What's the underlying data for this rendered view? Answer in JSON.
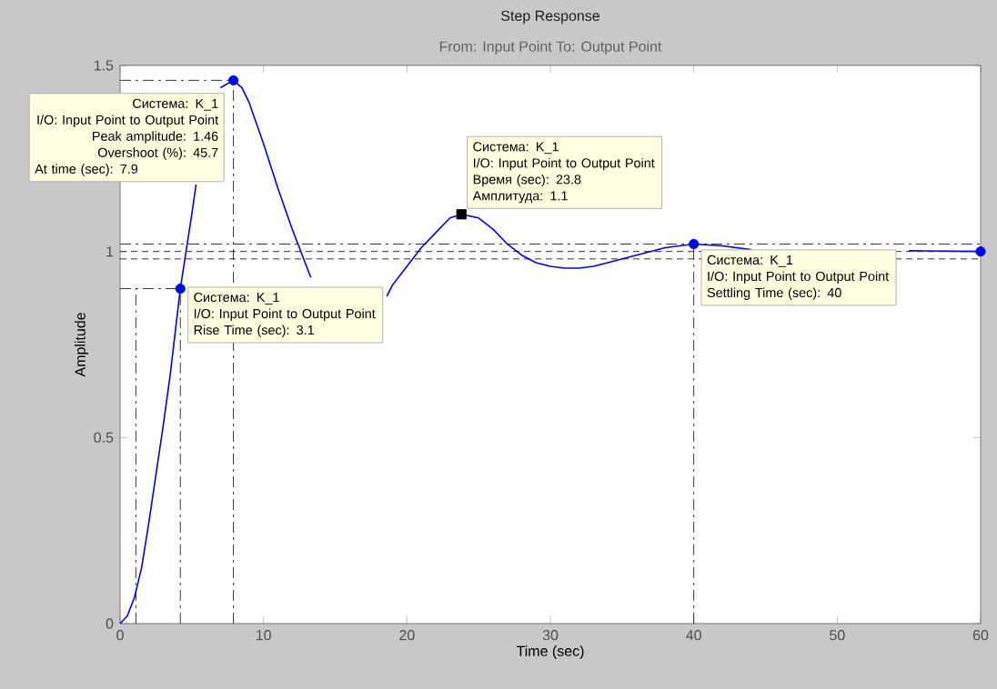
{
  "chart_data": {
    "type": "line",
    "title": "Step Response",
    "subtitle": "From: Input Point  To: Output Point",
    "xlabel": "Time (sec)",
    "ylabel": "Amplitude",
    "xlim": [
      0,
      60
    ],
    "ylim": [
      0,
      1.5
    ],
    "xticks": [
      0,
      10,
      20,
      30,
      40,
      50,
      60
    ],
    "yticks": [
      0,
      {
        "value": 0.5,
        "label": "0.5"
      },
      1,
      {
        "value": 1.5,
        "label": "1.5"
      }
    ],
    "grid": false,
    "series": [
      {
        "color": "#000000",
        "marker": "none",
        "line_style": "dashed",
        "x": [
          1.1,
          1.1
        ],
        "values": [
          0,
          0.9
        ]
      },
      {
        "color": "#000000",
        "marker": "none",
        "line_style": "dashed",
        "x": [
          4.2,
          4.2
        ],
        "values": [
          0,
          0.9
        ]
      },
      {
        "color": "#000000",
        "marker": "none",
        "line_style": "dashed",
        "x": [
          7.9,
          7.9
        ],
        "values": [
          0,
          1.46
        ]
      },
      {
        "color": "#000000",
        "marker": "none",
        "line_style": "dashed",
        "x": [
          40,
          40
        ],
        "values": [
          0,
          1.02
        ]
      },
      {
        "color": "#000000",
        "marker": "none",
        "line_style": "dashed",
        "x": [
          0,
          4.2
        ],
        "values": [
          0.9,
          0.9
        ]
      },
      {
        "color": "#000000",
        "marker": "none",
        "line_style": "dashed",
        "x": [
          0,
          7.9
        ],
        "values": [
          1.46,
          1.46
        ]
      },
      {
        "color": "#0000ff",
        "marker": "none",
        "x": [
          0,
          0.5,
          1,
          1.5,
          2,
          2.5,
          3,
          3.5,
          4.2,
          5,
          5.3,
          5.5,
          6,
          6.5,
          7,
          7.9,
          8.5,
          9,
          10,
          11,
          12,
          13,
          13.3,
          14,
          15,
          16,
          17,
          18,
          18.6,
          19,
          20,
          21,
          22,
          23,
          23.8,
          25,
          26,
          27,
          28,
          29,
          30,
          31,
          32,
          33,
          34,
          36,
          38,
          40,
          42,
          44,
          46,
          48,
          50,
          52,
          55,
          60
        ],
        "values": [
          0,
          0.02,
          0.07,
          0.15,
          0.27,
          0.4,
          0.53,
          0.67,
          0.9,
          1.1,
          1.18,
          null,
          null,
          null,
          1.44,
          1.46,
          1.44,
          1.4,
          1.29,
          1.17,
          1.06,
          0.96,
          0.93,
          null,
          null,
          null,
          null,
          null,
          0.88,
          0.91,
          0.96,
          1.01,
          1.05,
          1.09,
          1.1,
          1.09,
          1.06,
          1.02,
          0.99,
          0.97,
          0.96,
          0.955,
          0.955,
          0.96,
          0.97,
          0.99,
          1.01,
          1.02,
          1.015,
          1.005,
          null,
          null,
          null,
          null,
          1.002,
          1.0
        ]
      },
      {
        "type": "scatter",
        "color": "#0000ff",
        "marker": "circle",
        "x": [
          4.2,
          7.9,
          40,
          60
        ],
        "values": [
          0.9,
          1.46,
          1.02,
          1.0
        ]
      },
      {
        "type": "scatter",
        "color": "#000000",
        "marker": "square",
        "x": [
          23.8
        ],
        "values": [
          1.1
        ]
      }
    ],
    "ref_lines": [
      {
        "axis": "y",
        "value": 1.02,
        "line_style": "dashed",
        "color": "#000000"
      },
      {
        "axis": "y",
        "value": 1.0,
        "line_style": "dotted",
        "color": "#000000"
      },
      {
        "axis": "y",
        "value": 0.98,
        "line_style": "dotted",
        "color": "#000000"
      }
    ],
    "annotations": [
      {
        "text": "Система: K_1\nI/O: Input Point to Output Point\nPeak amplitude: 1.46\nOvershoot (%): 45.7\nAt time (sec): 7.9",
        "x": 7.9,
        "y": 1.46
      },
      {
        "text": "Система: K_1\nI/O: Input Point to Output Point\nRise Time (sec): 3.1",
        "x": 4.2,
        "y": 0.9
      },
      {
        "text": "Система: K_1\nI/O: Input Point to Output Point\nВремя (sec): 23.8\nАмплитуда: 1.1",
        "x": 23.8,
        "y": 1.1
      },
      {
        "text": "Система: K_1\nI/O: Input Point to Output Point\nSettling Time (sec): 40",
        "x": 40,
        "y": 1.02
      }
    ]
  }
}
